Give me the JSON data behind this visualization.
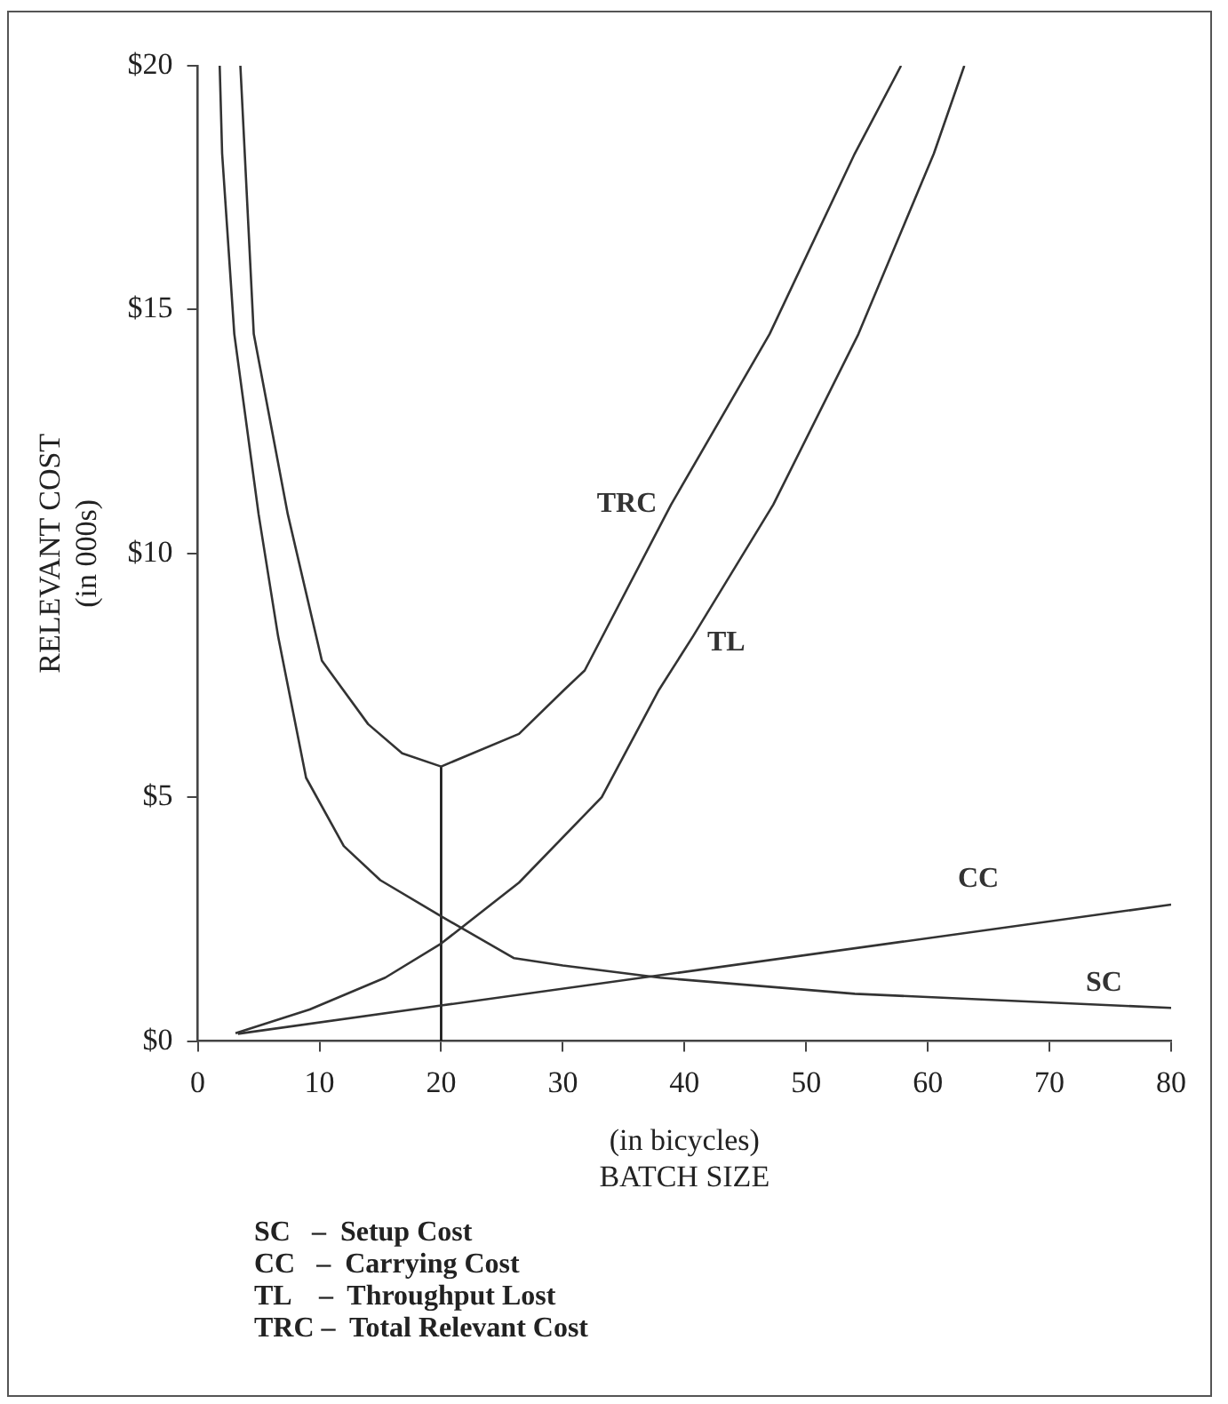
{
  "chart_data": {
    "type": "line",
    "xlabel": "(in bicycles)\nBATCH SIZE",
    "ylabel": "RELEVANT COST\n(in 000s)",
    "xlim": [
      0,
      80
    ],
    "xticks": [
      0,
      10,
      20,
      30,
      40,
      50,
      60,
      70,
      80
    ],
    "ylim": [
      0,
      20
    ],
    "yticks": [
      {
        "value": 0,
        "label": "$0"
      },
      {
        "value": 5,
        "label": "$5"
      },
      {
        "value": 10,
        "label": "$10"
      },
      {
        "value": 15,
        "label": "$15"
      },
      {
        "value": 20,
        "label": "$20"
      }
    ],
    "grid": false,
    "legend": false,
    "marker": "none",
    "line_style": "solid",
    "series": [
      {
        "name": "TRC",
        "color": "#333333",
        "x": [
          3.5,
          4.6,
          7.4,
          10.2,
          14,
          16.8,
          20,
          26.4,
          30.1,
          31.8,
          38.9,
          47,
          54,
          57.8
        ],
        "values": [
          20,
          14.5,
          10.8,
          7.8,
          6.5,
          5.9,
          5.63,
          6.3,
          7.2,
          7.6,
          11,
          14.5,
          18.2,
          20
        ]
      },
      {
        "name": "TL",
        "color": "#333333",
        "x": [
          3.1,
          9.2,
          15.4,
          20,
          26.4,
          33.2,
          37.9,
          40.7,
          47.3,
          54.3,
          60.5,
          63
        ],
        "values": [
          0.16,
          0.65,
          1.3,
          2,
          3.25,
          5,
          7.2,
          8.3,
          11,
          14.5,
          18.2,
          20
        ]
      },
      {
        "name": "CC",
        "color": "#333333",
        "x": [
          3.3,
          20,
          80
        ],
        "values": [
          0.15,
          0.73,
          2.8
        ]
      },
      {
        "name": "SC",
        "color": "#333333",
        "x": [
          1.8,
          2,
          3,
          5,
          6.6,
          8.9,
          12,
          15,
          20,
          26,
          30,
          38,
          54,
          80
        ],
        "values": [
          20,
          18.2,
          14.5,
          10.8,
          8.3,
          5.4,
          4,
          3.3,
          2.56,
          1.7,
          1.55,
          1.3,
          0.97,
          0.68
        ]
      },
      {
        "color": "#111111",
        "x": [
          20,
          20
        ],
        "values": [
          0,
          5.63
        ]
      }
    ],
    "annotations": [
      "SC   –  Setup Cost",
      "CC   –  Carrying Cost",
      "TL    –  Throughput Lost",
      "TRC –  Total Relevant Cost"
    ]
  }
}
